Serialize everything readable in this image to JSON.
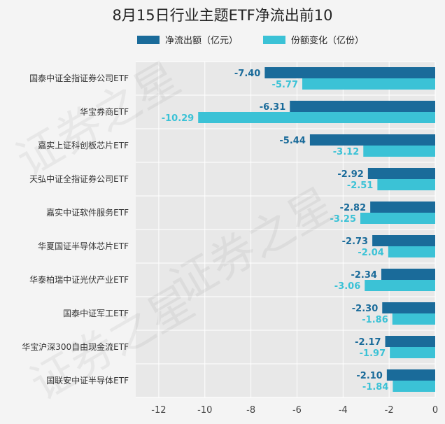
{
  "chart_data": {
    "type": "bar",
    "orientation": "horizontal",
    "title": "8月15日行业主题ETF净流出前10",
    "categories": [
      "国泰中证全指证券公司ETF",
      "华宝券商ETF",
      "嘉实上证科创板芯片ETF",
      "天弘中证全指证券公司ETF",
      "嘉实中证软件服务ETF",
      "华夏国证半导体芯片ETF",
      "华泰柏瑞中证光伏产业ETF",
      "国泰中证军工ETF",
      "华宝沪深300自由现金流ETF",
      "国联安中证半导体ETF"
    ],
    "series": [
      {
        "name": "净流出额（亿元）",
        "color": "#1a6b9a",
        "values": [
          -7.4,
          -6.31,
          -5.44,
          -2.92,
          -2.82,
          -2.73,
          -2.34,
          -2.3,
          -2.17,
          -2.1
        ]
      },
      {
        "name": "份额变化（亿份）",
        "color": "#3bc2d6",
        "values": [
          -5.77,
          -10.29,
          -3.12,
          -2.51,
          -3.25,
          -2.04,
          -3.06,
          -1.86,
          -1.97,
          -1.84
        ]
      }
    ],
    "xlim": [
      -13,
      0
    ],
    "xticks": [
      "-12",
      "-10",
      "-8",
      "-6",
      "-4",
      "-2",
      "0"
    ],
    "grid": true,
    "legend_position": "top"
  },
  "watermark_text": "证券之星"
}
